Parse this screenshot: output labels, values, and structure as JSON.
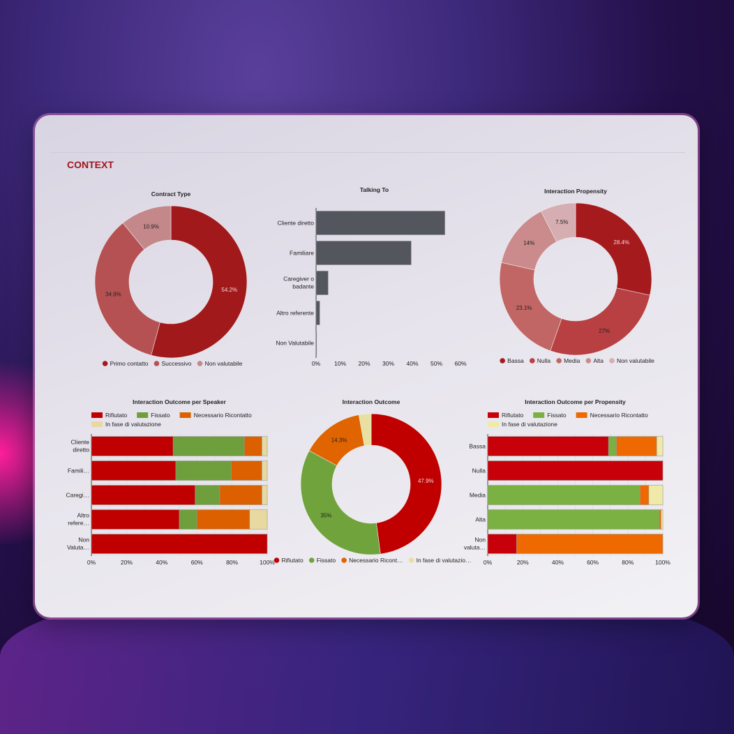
{
  "section_title": "CONTEXT",
  "chart_data": [
    {
      "type": "pie",
      "title": "Contract Type",
      "categories": [
        "Primo contatto",
        "Successivo",
        "Non valutabile"
      ],
      "values": [
        54.2,
        34.9,
        10.9
      ],
      "labels": [
        "54.2%",
        "34.9%",
        "10.9%"
      ],
      "colors": [
        "#a2191b",
        "#b55152",
        "#c4878a"
      ],
      "legend": "bottom",
      "donut": true
    },
    {
      "type": "bar",
      "orientation": "horizontal",
      "title": "Talking To",
      "categories": [
        "Cliente diretto",
        "Familiare",
        "Caregiver o badante",
        "Altro referente",
        "Non Valutabile"
      ],
      "values": [
        53.5,
        39.5,
        5,
        1.5,
        0.2
      ],
      "xlim": [
        0,
        60
      ],
      "xticks": [
        "0%",
        "10%",
        "20%",
        "30%",
        "40%",
        "50%",
        "60%"
      ],
      "colors": [
        "#54565d"
      ]
    },
    {
      "type": "pie",
      "title": "Interaction Propensity",
      "categories": [
        "Bassa",
        "Nulla",
        "Media",
        "Alta",
        "Non valutabile"
      ],
      "values": [
        28.4,
        27,
        23.1,
        14,
        7.5
      ],
      "labels": [
        "28.4%",
        "27%",
        "23.1%",
        "14%",
        "7.5%"
      ],
      "colors": [
        "#a51a1c",
        "#b83f42",
        "#c26565",
        "#cb8a8b",
        "#d6adb0"
      ],
      "legend": "bottom",
      "donut": true
    },
    {
      "type": "bar",
      "orientation": "horizontal",
      "stacked": true,
      "title": "Interaction Outcome per Speaker",
      "categories": [
        "Cliente diretto",
        "Famili…",
        "Caregi…",
        "Altro refere…",
        "Non Valuta…"
      ],
      "series": [
        {
          "name": "Rifiutato",
          "values": [
            46.5,
            48,
            59,
            50,
            100
          ]
        },
        {
          "name": "Fissato",
          "values": [
            40.5,
            31.5,
            14,
            10,
            0
          ]
        },
        {
          "name": "Necessario Ricontatto",
          "values": [
            10,
            17.5,
            24,
            30,
            0
          ]
        },
        {
          "name": "In fase di valutazione",
          "values": [
            3,
            3,
            3,
            10,
            0
          ]
        }
      ],
      "xlim": [
        0,
        100
      ],
      "xticks": [
        "0%",
        "20%",
        "40%",
        "60%",
        "80%",
        "100%"
      ],
      "colors": [
        "#c00000",
        "#6f9e3c",
        "#dc6000",
        "#e8d9a0"
      ],
      "legend": "top"
    },
    {
      "type": "pie",
      "title": "Interaction Outcome",
      "categories": [
        "Rifiutato",
        "Fissato",
        "Necessario Ricont…",
        "In fase di valutazio…"
      ],
      "values": [
        47.9,
        35,
        14.3,
        2.8
      ],
      "labels": [
        "47.9%",
        "35%",
        "14.3%",
        ""
      ],
      "colors": [
        "#c00000",
        "#70a33c",
        "#e06400",
        "#e8e0a0"
      ],
      "legend": "bottom",
      "donut": true
    },
    {
      "type": "bar",
      "orientation": "horizontal",
      "stacked": true,
      "title": "Interaction Outcome per Propensity",
      "categories": [
        "Bassa",
        "Nulla",
        "Media",
        "Alta",
        "Non valuta…"
      ],
      "series": [
        {
          "name": "Rifiutato",
          "values": [
            69,
            100,
            0,
            0,
            16.5
          ]
        },
        {
          "name": "Fissato",
          "values": [
            4.5,
            0,
            87,
            98,
            0
          ]
        },
        {
          "name": "Necessario Ricontatto",
          "values": [
            23,
            0,
            5,
            1,
            83.5
          ]
        },
        {
          "name": "In fase di valutazione",
          "values": [
            3.5,
            0,
            8,
            1,
            0
          ]
        }
      ],
      "xlim": [
        0,
        100
      ],
      "xticks": [
        "0%",
        "20%",
        "40%",
        "60%",
        "80%",
        "100%"
      ],
      "colors": [
        "#c8000a",
        "#7bb042",
        "#ee6a00",
        "#f0eaa8"
      ],
      "legend": "top"
    }
  ]
}
